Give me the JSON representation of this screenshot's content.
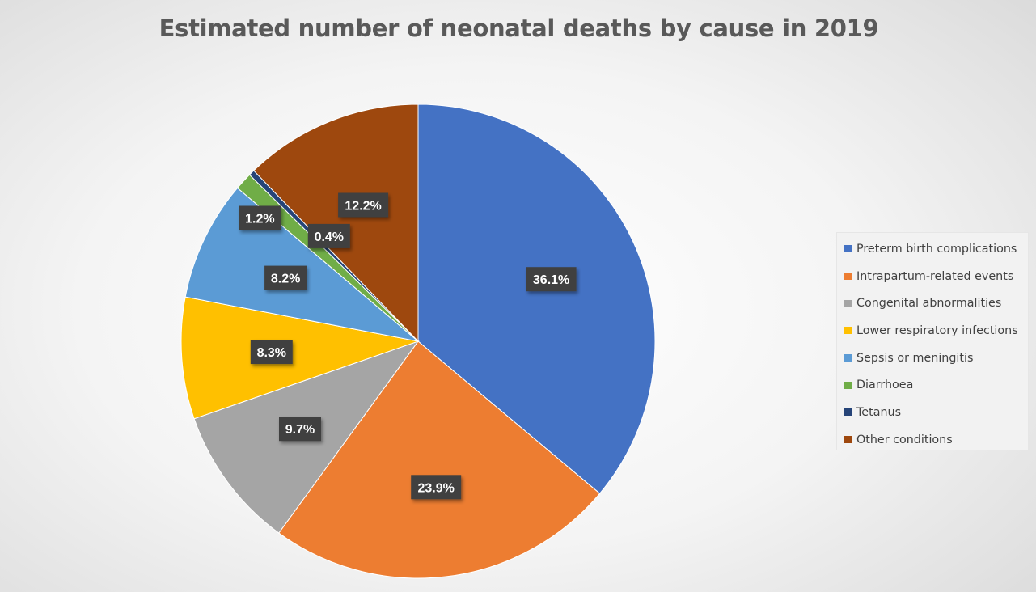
{
  "chart_data": {
    "type": "pie",
    "title": "Estimated number of neonatal deaths by cause in 2019",
    "legend_position": "right",
    "slices": [
      {
        "name": "Preterm birth complications",
        "value": 36.1,
        "label": "36.1%",
        "color": "#4472C4"
      },
      {
        "name": "Intrapartum-related events",
        "value": 23.9,
        "label": "23.9%",
        "color": "#ED7D31"
      },
      {
        "name": "Congenital abnormalities",
        "value": 9.7,
        "label": "9.7%",
        "color": "#A5A5A5"
      },
      {
        "name": "Lower respiratory infections",
        "value": 8.3,
        "label": "8.3%",
        "color": "#FFC000"
      },
      {
        "name": "Sepsis or meningitis",
        "value": 8.2,
        "label": "8.2%",
        "color": "#5B9BD5"
      },
      {
        "name": "Diarrhoea",
        "value": 1.2,
        "label": "1.2%",
        "color": "#70AD47"
      },
      {
        "name": "Tetanus",
        "value": 0.4,
        "label": "0.4%",
        "color": "#264478"
      },
      {
        "name": "Other conditions",
        "value": 12.2,
        "label": "12.2%",
        "color": "#9E480E"
      }
    ]
  }
}
